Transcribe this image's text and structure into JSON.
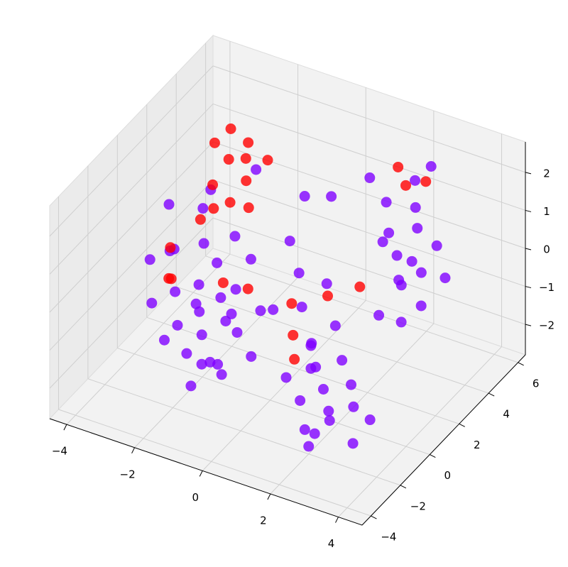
{
  "chart_data": {
    "type": "scatter3d",
    "xlim": [
      -4.5,
      4.7
    ],
    "ylim": [
      -4.6,
      6.5
    ],
    "zlim": [
      -2.8,
      2.8
    ],
    "xticks": [
      {
        "value": -4,
        "label": "−4"
      },
      {
        "value": -2,
        "label": "−2"
      },
      0,
      2,
      4
    ],
    "yticks": [
      {
        "value": -4,
        "label": "−4"
      },
      {
        "value": -2,
        "label": "−2"
      },
      0,
      2,
      4,
      6
    ],
    "zticks": [
      {
        "value": -2,
        "label": "−2"
      },
      {
        "value": -1,
        "label": "−1"
      },
      0,
      1,
      2
    ],
    "grid": true,
    "series": [
      {
        "color": "#8000ff",
        "points": [
          [
            -2.1,
            0.2,
            -1.8
          ],
          [
            -1.8,
            -0.5,
            -2.2
          ],
          [
            -2.4,
            0.5,
            -1.2
          ],
          [
            -1.5,
            0.1,
            -0.6
          ],
          [
            -2.0,
            1.0,
            -0.2
          ],
          [
            -2.6,
            -0.3,
            -1.5
          ],
          [
            -1.2,
            -0.8,
            -1.9
          ],
          [
            -2.3,
            0.8,
            0.3
          ],
          [
            -1.9,
            0.3,
            -2.5
          ],
          [
            -2.8,
            0.0,
            -0.8
          ],
          [
            -1.6,
            1.3,
            0.5
          ],
          [
            -2.2,
            -0.6,
            -2.0
          ],
          [
            -1.4,
            0.6,
            -1.2
          ],
          [
            -3.0,
            0.4,
            0.1
          ],
          [
            -2.0,
            -0.2,
            -1.0
          ],
          [
            -1.7,
            0.9,
            -1.6
          ],
          [
            -2.5,
            1.2,
            1.0
          ],
          [
            -1.1,
            0.2,
            -0.3
          ],
          [
            -2.9,
            -0.5,
            -1.9
          ],
          [
            -1.3,
            -0.3,
            -2.4
          ],
          [
            -2.4,
            1.5,
            1.4
          ],
          [
            -1.0,
            1.0,
            0.2
          ],
          [
            -3.3,
            0.8,
            -0.2
          ],
          [
            -0.8,
            -0.4,
            -1.1
          ],
          [
            -2.1,
            0.0,
            -0.4
          ],
          [
            -0.5,
            0.5,
            -0.8
          ],
          [
            0.0,
            0.2,
            -0.5
          ],
          [
            -0.3,
            -0.6,
            -1.5
          ],
          [
            -3.5,
            1.2,
            0.8
          ],
          [
            -1.9,
            -1.0,
            -2.6
          ],
          [
            0.5,
            1.0,
            -0.6
          ],
          [
            1.0,
            0.5,
            -1.2
          ],
          [
            0.2,
            1.5,
            0.0
          ],
          [
            1.4,
            1.2,
            -0.9
          ],
          [
            0.8,
            2.0,
            -0.3
          ],
          [
            -0.2,
            1.8,
            0.6
          ],
          [
            1.2,
            0.0,
            -1.6
          ],
          [
            0.6,
            -0.3,
            -1.9
          ],
          [
            2.0,
            -1.0,
            -1.5
          ],
          [
            2.4,
            -1.5,
            -2.0
          ],
          [
            1.6,
            -0.6,
            -1.2
          ],
          [
            2.8,
            -0.8,
            -1.8
          ],
          [
            1.8,
            -1.8,
            -2.3
          ],
          [
            2.2,
            -0.2,
            -1.0
          ],
          [
            3.0,
            -1.3,
            -2.5
          ],
          [
            1.4,
            -1.2,
            -1.9
          ],
          [
            2.6,
            -0.5,
            -1.4
          ],
          [
            2.0,
            -2.0,
            -2.6
          ],
          [
            1.2,
            0.0,
            -1.0
          ],
          [
            3.2,
            -0.6,
            -2.1
          ],
          [
            2.5,
            -1.8,
            -1.6
          ],
          [
            1.7,
            -0.9,
            -2.8
          ],
          [
            2.0,
            4.0,
            0.0
          ],
          [
            2.5,
            4.5,
            -0.5
          ],
          [
            1.8,
            3.5,
            0.5
          ],
          [
            2.2,
            4.8,
            1.0
          ],
          [
            2.8,
            3.8,
            -1.0
          ],
          [
            1.6,
            4.2,
            1.2
          ],
          [
            2.4,
            3.2,
            -0.2
          ],
          [
            3.0,
            4.4,
            0.4
          ],
          [
            2.1,
            5.0,
            1.6
          ],
          [
            1.9,
            3.0,
            -1.2
          ],
          [
            2.6,
            4.0,
            0.9
          ],
          [
            2.3,
            3.6,
            -1.5
          ],
          [
            2.9,
            5.2,
            -0.8
          ],
          [
            1.5,
            4.6,
            0.2
          ],
          [
            2.7,
            3.4,
            0.3
          ],
          [
            2.0,
            4.3,
            -0.9
          ],
          [
            1.2,
            4.0,
            1.8
          ],
          [
            2.4,
            5.4,
            1.9
          ],
          [
            0.5,
            3.0,
            1.5
          ],
          [
            -0.5,
            3.5,
            1.0
          ],
          [
            -1.5,
            2.5,
            1.8
          ],
          [
            -3.8,
            0.6,
            -0.5
          ],
          [
            -3.4,
            -0.2,
            -1.2
          ]
        ]
      },
      {
        "color": "#ff0000",
        "points": [
          [
            -2.0,
            1.8,
            2.2
          ],
          [
            -1.6,
            2.2,
            2.6
          ],
          [
            -2.3,
            1.4,
            1.6
          ],
          [
            -1.8,
            2.5,
            2.0
          ],
          [
            -2.1,
            1.0,
            1.2
          ],
          [
            -1.4,
            1.6,
            1.9
          ],
          [
            -2.5,
            2.0,
            2.4
          ],
          [
            -1.7,
            1.2,
            1.4
          ],
          [
            -2.2,
            2.4,
            2.7
          ],
          [
            -1.5,
            2.0,
            1.0
          ],
          [
            -2.4,
            0.8,
            0.9
          ],
          [
            -1.2,
            2.6,
            2.1
          ],
          [
            -3.2,
            0.6,
            0.0
          ],
          [
            -2.9,
            -0.2,
            -0.4
          ],
          [
            -3.0,
            0.2,
            -0.6
          ],
          [
            -1.6,
            0.5,
            -0.4
          ],
          [
            -1.0,
            0.8,
            -0.5
          ],
          [
            0.2,
            1.0,
            -0.6
          ],
          [
            0.5,
            0.4,
            -1.1
          ],
          [
            1.0,
            1.6,
            -0.4
          ],
          [
            1.6,
            2.4,
            -0.3
          ],
          [
            0.8,
            -0.2,
            -1.4
          ],
          [
            1.6,
            5.0,
            1.8
          ],
          [
            2.2,
            5.5,
            1.4
          ],
          [
            2.0,
            4.6,
            1.6
          ]
        ]
      }
    ]
  }
}
